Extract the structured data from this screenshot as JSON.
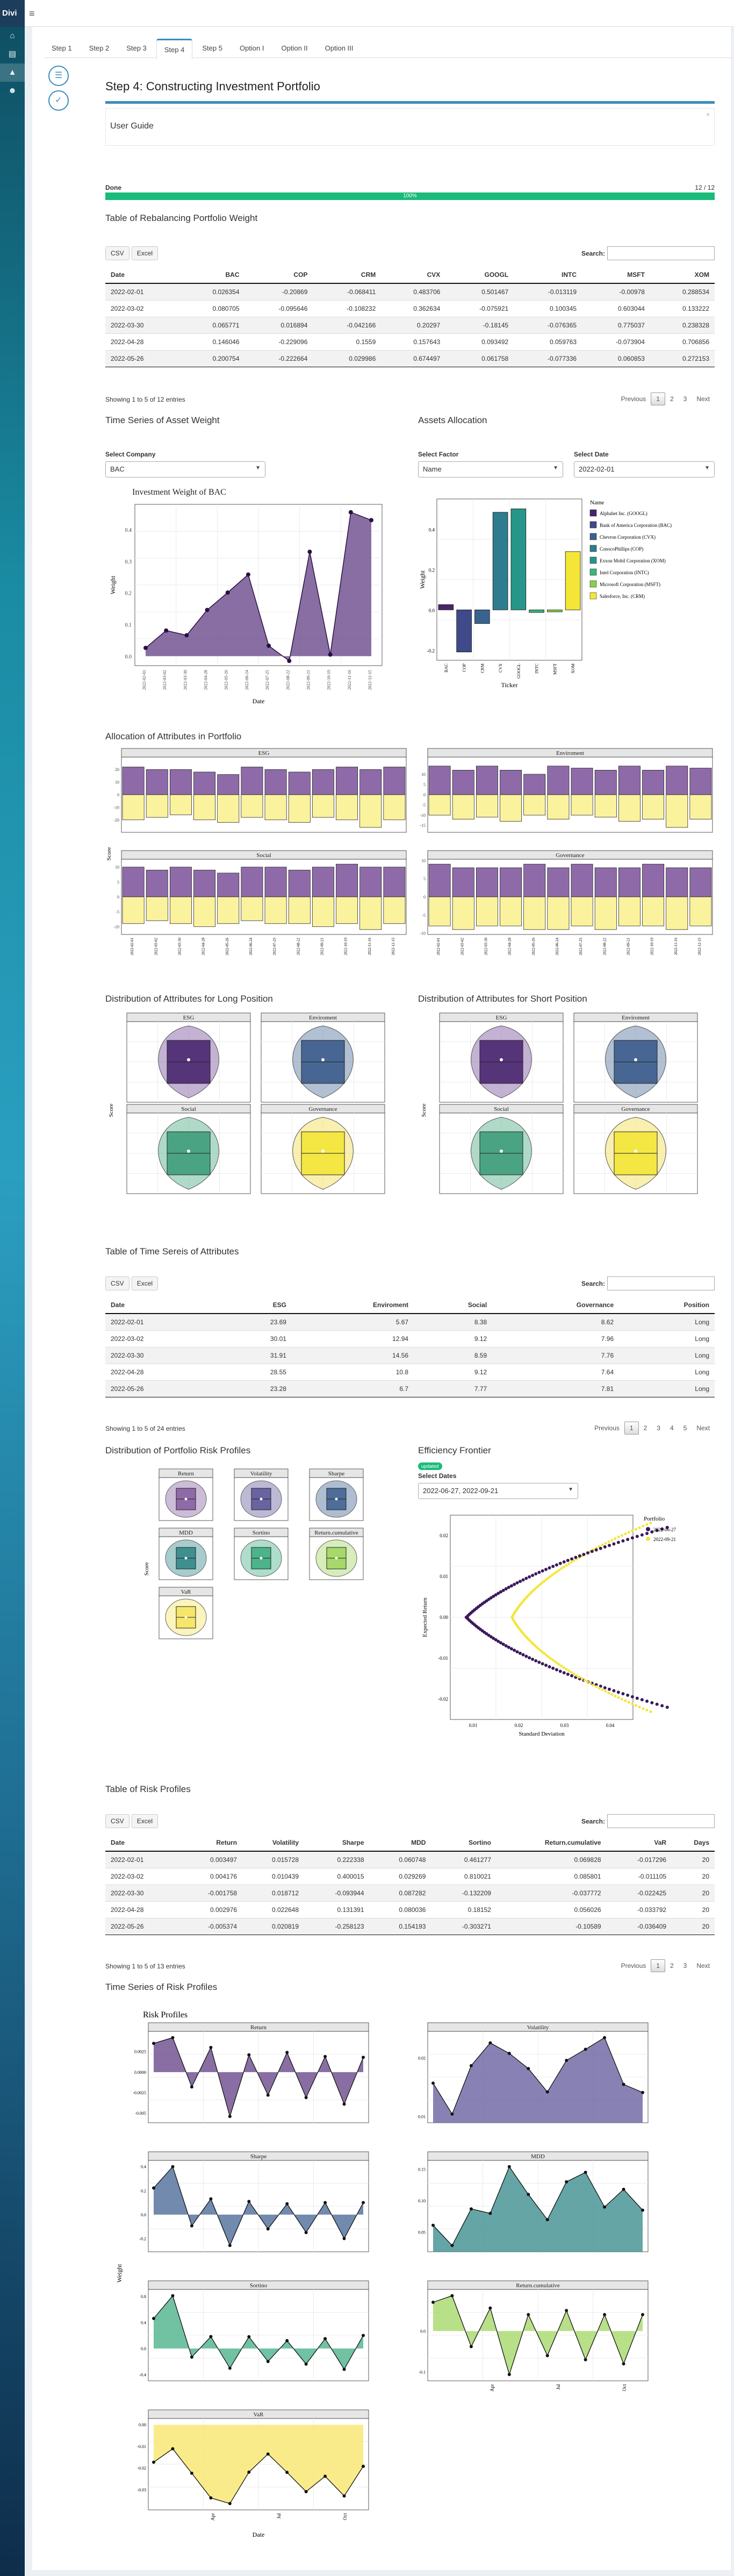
{
  "app": {
    "logo": "Divi",
    "menu_icon": "menu-icon"
  },
  "sidebar": {
    "icons": [
      "home-icon",
      "book-icon",
      "chart-icon",
      "user-icon"
    ]
  },
  "tabs": [
    "Step 1",
    "Step 2",
    "Step 3",
    "Step 4",
    "Step 5",
    "Option I",
    "Option II",
    "Option III"
  ],
  "active_tab": "Step 4",
  "page": {
    "title": "Step 4: Constructing Investment Portfolio",
    "user_guide": "User Guide",
    "close": "×"
  },
  "progress": {
    "label": "Done",
    "count": "12 / 12",
    "percent": 100,
    "bar_text": "100%"
  },
  "buttons": {
    "csv": "CSV",
    "excel": "Excel"
  },
  "search_label": "Search:",
  "pager": {
    "previous": "Previous",
    "next": "Next"
  },
  "table1": {
    "title": "Table of Rebalancing Portfolio Weight",
    "columns": [
      "Date",
      "BAC",
      "COP",
      "CRM",
      "CVX",
      "GOOGL",
      "INTC",
      "MSFT",
      "XOM"
    ],
    "rows": [
      [
        "2022-02-01",
        "0.026354",
        "-0.20869",
        "-0.068411",
        "0.483706",
        "0.501467",
        "-0.013119",
        "-0.00978",
        "0.288534"
      ],
      [
        "2022-03-02",
        "0.080705",
        "-0.095646",
        "-0.108232",
        "0.362634",
        "-0.075921",
        "0.100345",
        "0.603044",
        "0.133222"
      ],
      [
        "2022-03-30",
        "0.065771",
        "0.016894",
        "-0.042166",
        "0.20297",
        "-0.18145",
        "-0.076365",
        "0.775037",
        "0.238328"
      ],
      [
        "2022-04-28",
        "0.146046",
        "-0.229096",
        "0.1559",
        "0.157643",
        "0.093492",
        "0.059763",
        "-0.073904",
        "0.706856"
      ],
      [
        "2022-05-26",
        "0.200754",
        "-0.222664",
        "0.029986",
        "0.674497",
        "0.061758",
        "-0.077336",
        "0.060853",
        "0.272153"
      ]
    ],
    "showing": "Showing 1 to 5 of 12 entries",
    "pages": [
      "1",
      "2",
      "3"
    ]
  },
  "asset_weight": {
    "title": "Time Series of Asset Weight",
    "select_label": "Select Company",
    "select_value": "BAC",
    "chart_data": {
      "type": "area",
      "title": "Investment Weight of BAC",
      "xlabel": "Date",
      "ylabel": "Weight",
      "x": [
        "2022-02-01",
        "2022-03-02",
        "2022-03-30",
        "2022-04-28",
        "2022-05-26",
        "2022-06-24",
        "2022-07-25",
        "2022-08-22",
        "2022-09-21",
        "2022-10-19",
        "2022-11-16",
        "2022-12-15"
      ],
      "values": [
        0.026,
        0.081,
        0.066,
        0.146,
        0.201,
        0.258,
        0.033,
        -0.015,
        0.33,
        0.005,
        0.455,
        0.43
      ],
      "yticks": [
        "0.0",
        "0.1",
        "0.2",
        "0.3",
        "0.4"
      ],
      "ylim": [
        -0.03,
        0.48
      ]
    }
  },
  "assets_allocation": {
    "title": "Assets Allocation",
    "factor_label": "Select Factor",
    "factor_value": "Name",
    "date_label": "Select Date",
    "date_value": "2022-02-01",
    "chart_data": {
      "type": "bar",
      "xlabel": "Ticker",
      "ylabel": "Weight",
      "legend_title": "Name",
      "categories": [
        "BAC",
        "COP",
        "CRM",
        "CVX",
        "GOOGL",
        "INTC",
        "MSFT",
        "XOM"
      ],
      "values": [
        0.026,
        -0.209,
        -0.068,
        0.484,
        0.501,
        -0.013,
        -0.01,
        0.289
      ],
      "colors": [
        "#48266b",
        "#3f4a8a",
        "#39638f",
        "#2f7c8e",
        "#26968a",
        "#3bb57a",
        "#8ad04a",
        "#f3e638"
      ],
      "legend": [
        "Alphabet Inc. (GOOGL)",
        "Bank of America Corporation (BAC)",
        "Chevron Corporation (CVX)",
        "ConocoPhillips (COP)",
        "Exxon Mobil Corporation (XOM)",
        "Intel Corporation (INTC)",
        "Microsoft Corporation (MSFT)",
        "Salesforce, Inc. (CRM)"
      ],
      "yticks": [
        "-0.2",
        "0.0",
        "0.2",
        "0.4"
      ],
      "ylim": [
        -0.25,
        0.55
      ]
    }
  },
  "allocation_attrs": {
    "title": "Allocation of Attributes in Portfolio",
    "ylabel": "Score",
    "panels": [
      "ESG",
      "Enviroment",
      "Social",
      "Governance"
    ],
    "dates": [
      "2022-02-01",
      "2022-03-02",
      "2022-03-30",
      "2022-04-28",
      "2022-05-26",
      "2022-06-24",
      "2022-07-25",
      "2022-08-22",
      "2022-09-21",
      "2022-10-19",
      "2022-11-16",
      "2022-12-15"
    ]
  },
  "long_position": {
    "title": "Distribution of Attributes for Long Position",
    "ylabel": "Score",
    "panels": [
      "ESG",
      "Enviroment",
      "Social",
      "Governance"
    ]
  },
  "short_position": {
    "title": "Distribution of Attributes for Short Position",
    "ylabel": "Score",
    "panels": [
      "ESG",
      "Enviroment",
      "Social",
      "Governance"
    ]
  },
  "table2": {
    "title": "Table of Time Sereis of Attributes",
    "columns": [
      "Date",
      "ESG",
      "Enviroment",
      "Social",
      "Governance",
      "Position"
    ],
    "rows": [
      [
        "2022-02-01",
        "23.69",
        "5.67",
        "8.38",
        "8.62",
        "Long"
      ],
      [
        "2022-03-02",
        "30.01",
        "12.94",
        "9.12",
        "7.96",
        "Long"
      ],
      [
        "2022-03-30",
        "31.91",
        "14.56",
        "8.59",
        "7.76",
        "Long"
      ],
      [
        "2022-04-28",
        "28.55",
        "10.8",
        "9.12",
        "7.64",
        "Long"
      ],
      [
        "2022-05-26",
        "23.28",
        "6.7",
        "7.77",
        "7.81",
        "Long"
      ]
    ],
    "showing": "Showing 1 to 5 of 24 entries",
    "pages": [
      "1",
      "2",
      "3",
      "4",
      "5"
    ]
  },
  "risk_dist": {
    "title": "Distribution of Portfolio Risk Profiles",
    "ylabel": "Score",
    "panels": [
      "Return",
      "Volatility",
      "Sharpe",
      "MDD",
      "Sortino",
      "Return.cumulative",
      "VaR"
    ]
  },
  "frontier": {
    "title": "Efficiency Frontier",
    "badge": "updated",
    "select_label": "Select Dates",
    "select_value": "2022-06-27, 2022-09-21",
    "chart_data": {
      "type": "scatter",
      "xlabel": "Standard Deviation",
      "ylabel": "Expected Return",
      "legend_title": "Portfolio",
      "series": [
        {
          "name": "2022-06-27",
          "color": "#3b1a5c"
        },
        {
          "name": "2022-09-21",
          "color": "#f3e638"
        }
      ],
      "xticks": [
        "0.01",
        "0.02",
        "0.03",
        "0.04"
      ],
      "yticks": [
        "-0.02",
        "-0.01",
        "0.00",
        "0.01",
        "0.02"
      ],
      "xlim": [
        0.005,
        0.045
      ],
      "ylim": [
        -0.025,
        0.025
      ]
    }
  },
  "table3": {
    "title": "Table of Risk Profiles",
    "columns": [
      "Date",
      "Return",
      "Volatility",
      "Sharpe",
      "MDD",
      "Sortino",
      "Return.cumulative",
      "VaR",
      "Days"
    ],
    "rows": [
      [
        "2022-02-01",
        "0.003497",
        "0.015728",
        "0.222338",
        "0.060748",
        "0.461277",
        "0.069828",
        "-0.017296",
        "20"
      ],
      [
        "2022-03-02",
        "0.004176",
        "0.010439",
        "0.400015",
        "0.029269",
        "0.810021",
        "0.085801",
        "-0.011105",
        "20"
      ],
      [
        "2022-03-30",
        "-0.001758",
        "0.018712",
        "-0.093944",
        "0.087282",
        "-0.132209",
        "-0.037772",
        "-0.022425",
        "20"
      ],
      [
        "2022-04-28",
        "0.002976",
        "0.022648",
        "0.131391",
        "0.080036",
        "0.18152",
        "0.056026",
        "-0.033792",
        "20"
      ],
      [
        "2022-05-26",
        "-0.005374",
        "0.020819",
        "-0.258123",
        "0.154193",
        "-0.303271",
        "-0.10589",
        "-0.036409",
        "20"
      ]
    ],
    "showing": "Showing 1 to 5 of 13 entries",
    "pages": [
      "1",
      "2",
      "3"
    ]
  },
  "risk_ts": {
    "title": "Time Series of Risk Profiles",
    "chart_title": "Risk Profiles",
    "xlabel": "Date",
    "ylabel": "Weight",
    "month_ticks": [
      "Apr",
      "Jul",
      "Oct"
    ],
    "panels": [
      {
        "name": "Return",
        "color": "#6b4a8c",
        "values": [
          0.0035,
          0.0042,
          -0.0018,
          0.003,
          -0.0054,
          0.0021,
          -0.0028,
          0.0024,
          -0.0031,
          0.0019,
          -0.0039,
          0.0018
        ],
        "yticks": [
          "-0.005",
          "-0.0025",
          "0.0000",
          "0.0025"
        ]
      },
      {
        "name": "Volatility",
        "color": "#6a63a1",
        "values": [
          0.0157,
          0.0104,
          0.0187,
          0.0226,
          0.0208,
          0.0182,
          0.0142,
          0.0196,
          0.0215,
          0.0235,
          0.0155,
          0.0141
        ],
        "yticks": [
          "0.01",
          "0.02"
        ]
      },
      {
        "name": "Sharpe",
        "color": "#4e6d9a",
        "values": [
          0.222,
          0.4,
          -0.094,
          0.131,
          -0.258,
          0.11,
          -0.12,
          0.09,
          -0.15,
          0.1,
          -0.2,
          0.1
        ],
        "yticks": [
          "-0.2",
          "0.0",
          "0.2",
          "0.4"
        ]
      },
      {
        "name": "MDD",
        "color": "#3f8f90",
        "values": [
          0.061,
          0.029,
          0.087,
          0.08,
          0.154,
          0.11,
          0.07,
          0.13,
          0.145,
          0.09,
          0.118,
          0.085
        ],
        "yticks": [
          "0.05",
          "0.10",
          "0.15"
        ]
      },
      {
        "name": "Sortino",
        "color": "#4cb38b",
        "values": [
          0.461,
          0.81,
          -0.132,
          0.182,
          -0.303,
          0.18,
          -0.2,
          0.12,
          -0.24,
          0.15,
          -0.32,
          0.2
        ],
        "yticks": [
          "-0.4",
          "0.0",
          "0.4",
          "0.8"
        ]
      },
      {
        "name": "Return.cumulative",
        "color": "#a6d86a",
        "values": [
          0.07,
          0.086,
          -0.038,
          0.056,
          -0.106,
          0.04,
          -0.06,
          0.05,
          -0.07,
          0.04,
          -0.08,
          0.04
        ],
        "yticks": [
          "-0.1",
          "0.0"
        ]
      },
      {
        "name": "VaR",
        "color": "#f7e66b",
        "values": [
          -0.0173,
          -0.0111,
          -0.0224,
          -0.0338,
          -0.0364,
          -0.0219,
          -0.0135,
          -0.022,
          -0.0309,
          -0.0238,
          -0.0329,
          -0.0192
        ],
        "yticks": [
          "-0.03",
          "-0.02",
          "-0.01",
          "0.00"
        ]
      }
    ]
  }
}
